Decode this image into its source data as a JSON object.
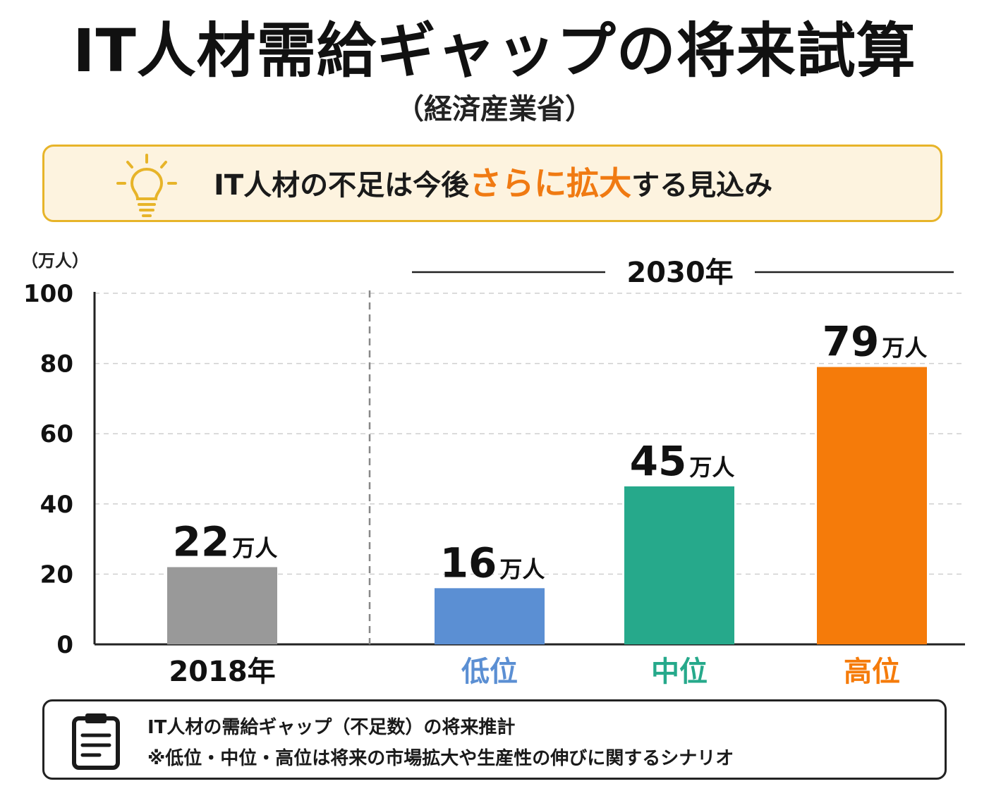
{
  "header": {
    "title": "IT人材需給ギャップの将来試算",
    "subtitle": "（経済産業省）"
  },
  "callout": {
    "icon": "lightbulb-icon",
    "text_before": "IT人材の不足は今後",
    "text_highlight": "さらに拡大",
    "text_after": "する見込み",
    "highlight_color": "#f07a12",
    "border_color": "#e7b429",
    "background_color": "#fdf3df"
  },
  "chart_data": {
    "type": "bar",
    "y_unit_label": "（万人）",
    "ylim": [
      0,
      100
    ],
    "yticks": [
      "0",
      "20",
      "40",
      "60",
      "80",
      "100"
    ],
    "grid": true,
    "group_label": "2030年",
    "categories": [
      "2018年",
      "低位",
      "中位",
      "高位"
    ],
    "values": [
      22,
      16,
      45,
      79
    ],
    "value_labels": [
      "22",
      "16",
      "45",
      "79"
    ],
    "value_unit": "万人",
    "bar_colors": [
      "#999999",
      "#5b8fd3",
      "#26a98b",
      "#f57b0a"
    ],
    "category_label_colors": [
      "#111111",
      "#5b8fd3",
      "#26a98b",
      "#f57b0a"
    ]
  },
  "footer": {
    "icon": "clipboard-icon",
    "line1": "IT人材の需給ギャップ（不足数）の将来推計",
    "line2": "※低位・中位・高位は将来の市場拡大や生産性の伸びに関するシナリオ"
  }
}
